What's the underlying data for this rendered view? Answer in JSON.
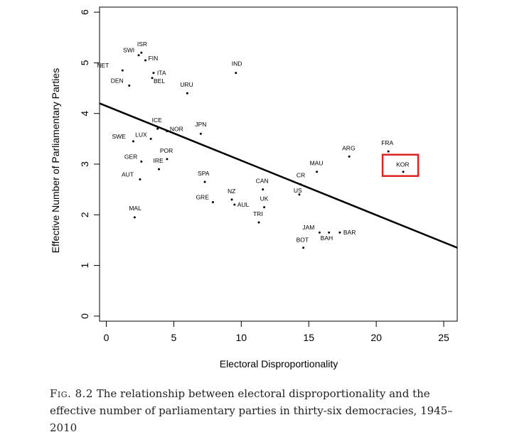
{
  "chart_data": {
    "type": "scatter",
    "xlabel": "Electoral Disproportionality",
    "ylabel": "Effective Number of Parliamentary Parties",
    "xlim": [
      -0.5,
      26
    ],
    "ylim": [
      -0.1,
      6.1
    ],
    "x_ticks": [
      0,
      5,
      10,
      15,
      20,
      25
    ],
    "y_ticks": [
      0,
      1,
      2,
      3,
      4,
      5,
      6
    ],
    "grid": false,
    "legend": "none",
    "regression_line": {
      "start": [
        -0.5,
        4.2
      ],
      "end": [
        26,
        1.35
      ]
    },
    "points": [
      {
        "label": "SWI",
        "x": 2.4,
        "y": 5.15
      },
      {
        "label": "ISR",
        "x": 2.6,
        "y": 5.2
      },
      {
        "label": "NET",
        "x": 1.2,
        "y": 4.85
      },
      {
        "label": "FIN",
        "x": 2.9,
        "y": 5.05
      },
      {
        "label": "ITA",
        "x": 3.5,
        "y": 4.8
      },
      {
        "label": "BEL",
        "x": 3.4,
        "y": 4.7
      },
      {
        "label": "DEN",
        "x": 1.7,
        "y": 4.55
      },
      {
        "label": "URU",
        "x": 6.0,
        "y": 4.4
      },
      {
        "label": "IND",
        "x": 9.6,
        "y": 4.8
      },
      {
        "label": "ICE",
        "x": 3.8,
        "y": 3.7
      },
      {
        "label": "NOR",
        "x": 4.5,
        "y": 3.65
      },
      {
        "label": "SWE",
        "x": 2.0,
        "y": 3.45
      },
      {
        "label": "LUX",
        "x": 3.3,
        "y": 3.5
      },
      {
        "label": "JPN",
        "x": 7.0,
        "y": 3.6
      },
      {
        "label": "GER",
        "x": 2.6,
        "y": 3.05
      },
      {
        "label": "POR",
        "x": 4.5,
        "y": 3.1
      },
      {
        "label": "IRE",
        "x": 3.9,
        "y": 2.9
      },
      {
        "label": "AUT",
        "x": 2.5,
        "y": 2.7
      },
      {
        "label": "SPA",
        "x": 7.3,
        "y": 2.65
      },
      {
        "label": "GRE",
        "x": 7.9,
        "y": 2.25
      },
      {
        "label": "NZ",
        "x": 9.3,
        "y": 2.3
      },
      {
        "label": "AUL",
        "x": 9.5,
        "y": 2.2
      },
      {
        "label": "CAN",
        "x": 11.6,
        "y": 2.5
      },
      {
        "label": "UK",
        "x": 11.7,
        "y": 2.15
      },
      {
        "label": "TRI",
        "x": 11.3,
        "y": 1.85
      },
      {
        "label": "MAL",
        "x": 2.1,
        "y": 1.95
      },
      {
        "label": "CR",
        "x": 14.4,
        "y": 2.6
      },
      {
        "label": "US",
        "x": 14.3,
        "y": 2.4
      },
      {
        "label": "MAU",
        "x": 15.6,
        "y": 2.85
      },
      {
        "label": "ARG",
        "x": 18.0,
        "y": 3.15
      },
      {
        "label": "FRA",
        "x": 20.9,
        "y": 3.25
      },
      {
        "label": "KOR",
        "x": 22.0,
        "y": 2.85
      },
      {
        "label": "JAM",
        "x": 15.8,
        "y": 1.65
      },
      {
        "label": "BAH",
        "x": 16.5,
        "y": 1.65
      },
      {
        "label": "BAR",
        "x": 17.3,
        "y": 1.65
      },
      {
        "label": "BOT",
        "x": 14.6,
        "y": 1.35
      }
    ],
    "highlight": {
      "label": "KOR",
      "color": "#dd2222"
    }
  },
  "caption": {
    "figure_label": "Fig. 8.2",
    "text": "The relationship between electoral disproportionality and the effective number of parliamentary parties in thirty-six democracies, 1945–2010"
  }
}
